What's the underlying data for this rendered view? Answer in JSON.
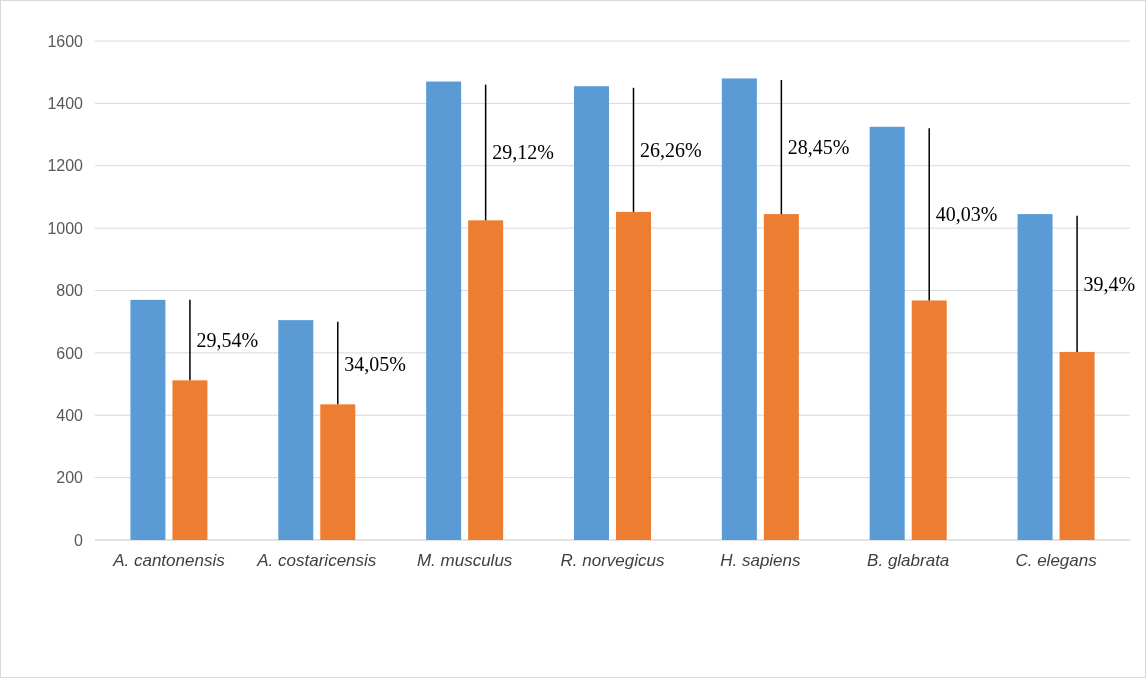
{
  "chart_data": {
    "type": "bar",
    "categories": [
      "A. cantonensis",
      "A. costaricensis",
      "M. musculus",
      "R. norvegicus",
      "H. sapiens",
      "B. glabrata",
      "C. elegans"
    ],
    "series": [
      {
        "color": "#5b9bd5",
        "values": [
          770,
          705,
          1470,
          1455,
          1480,
          1325,
          1045
        ]
      },
      {
        "color": "#ed7d31",
        "values": [
          512,
          435,
          1025,
          1052,
          1045,
          768,
          603
        ],
        "errors": [
          [
            512,
            770
          ],
          [
            435,
            700
          ],
          [
            1025,
            1460
          ],
          [
            1052,
            1450
          ],
          [
            1045,
            1475
          ],
          [
            768,
            1320
          ],
          [
            603,
            1040
          ]
        ]
      }
    ],
    "annotations": [
      {
        "text": "29,54%",
        "x": "A. cantonensis",
        "y": 640
      },
      {
        "text": "34,05%",
        "x": "A. costaricensis",
        "y": 565
      },
      {
        "text": "29,12%",
        "x": "M. musculus",
        "y": 1245
      },
      {
        "text": "26,26%",
        "x": "R. norvegicus",
        "y": 1250
      },
      {
        "text": "28,45%",
        "x": "H. sapiens",
        "y": 1260
      },
      {
        "text": "40,03%",
        "x": "B. glabrata",
        "y": 1045
      },
      {
        "text": "39,4%",
        "x": "C. elegans",
        "y": 820
      }
    ],
    "ylim": [
      0,
      1600
    ],
    "yticks": [
      0,
      200,
      400,
      600,
      800,
      1000,
      1200,
      1400,
      1600
    ],
    "grid": "y"
  }
}
